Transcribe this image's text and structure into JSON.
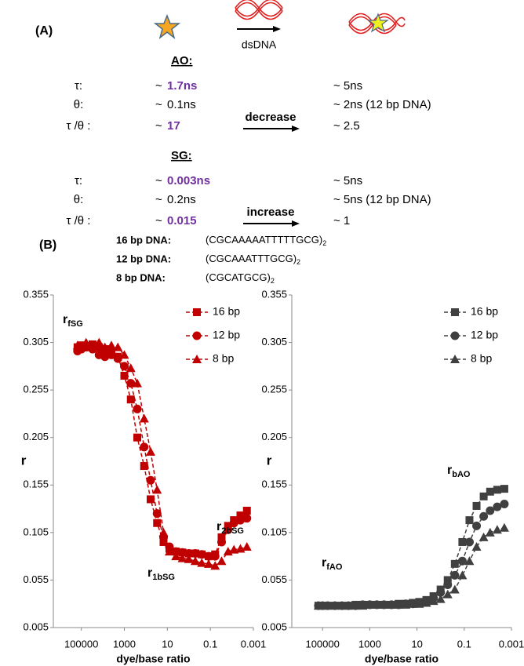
{
  "panel_a": {
    "label": "(A)",
    "arrow_label": "dsDNA",
    "highlight_color": "#7030a0",
    "sections": [
      {
        "heading": "AO:",
        "rows": [
          {
            "symbol": "τ:",
            "approx": "~",
            "free": "1.7ns",
            "highlight": true,
            "bound": "~ 5ns"
          },
          {
            "symbol": "θ:",
            "approx": "~",
            "free": "0.1ns",
            "highlight": false,
            "bound": "~ 2ns (12 bp DNA)"
          },
          {
            "symbol": "τ /θ :",
            "approx": "~",
            "free": "17",
            "highlight": true,
            "change": "decrease",
            "bound": "~ 2.5"
          }
        ]
      },
      {
        "heading": "SG:",
        "rows": [
          {
            "symbol": "τ:",
            "approx": "~",
            "free": "0.003ns",
            "highlight": true,
            "bound": "~ 5ns"
          },
          {
            "symbol": "θ:",
            "approx": "~",
            "free": "0.2ns",
            "highlight": false,
            "bound": "~ 5ns (12 bp DNA)"
          },
          {
            "symbol": "τ /θ :",
            "approx": "~",
            "free": "0.015",
            "highlight": true,
            "change": "increase",
            "bound": "~ 1"
          }
        ]
      }
    ]
  },
  "panel_b": {
    "label": "(B)",
    "sequences": [
      {
        "label": "16 bp DNA:",
        "sequence": "(CGCAAAAATTTTTGCG)",
        "subscript": "2"
      },
      {
        "label": "12 bp DNA:",
        "sequence": "(CGCAAATTTGCG)",
        "subscript": "2"
      },
      {
        "label": "8 bp DNA:",
        "sequence": "(CGCATGCG)",
        "subscript": "2"
      }
    ]
  },
  "chart_data": [
    {
      "type": "line",
      "xscale": "log",
      "xlabel": "dye/base ratio",
      "ylabel": "r",
      "line_style": "dashed",
      "legend": "upper right",
      "x": [
        150000,
        100000,
        60000,
        30000,
        15000,
        8000,
        4000,
        2000,
        1000,
        500,
        250,
        120,
        60,
        30,
        15,
        8,
        4,
        2,
        1,
        0.5,
        0.25,
        0.12,
        0.06,
        0.03,
        0.015,
        0.008,
        0.004,
        0.002
      ],
      "xlim": [
        2000000,
        0.001
      ],
      "xticks": [
        100000,
        1000,
        10,
        0.1,
        0.001
      ],
      "ylim": [
        0.005,
        0.355
      ],
      "yticks": [
        0.005,
        0.055,
        0.105,
        0.155,
        0.205,
        0.255,
        0.305,
        0.355
      ],
      "series": [
        {
          "name": "16 bp",
          "color": "#c00000",
          "marker": "square",
          "values": [
            0.3,
            0.302,
            0.3,
            0.303,
            0.3,
            0.298,
            0.296,
            0.29,
            0.27,
            0.245,
            0.205,
            0.175,
            0.14,
            0.115,
            0.095,
            0.088,
            0.085,
            0.084,
            0.083,
            0.083,
            0.082,
            0.08,
            0.082,
            0.1,
            0.112,
            0.118,
            0.123,
            0.128
          ]
        },
        {
          "name": "12 bp",
          "color": "#c00000",
          "marker": "circle",
          "values": [
            0.296,
            0.298,
            0.3,
            0.298,
            0.292,
            0.29,
            0.292,
            0.288,
            0.28,
            0.262,
            0.235,
            0.195,
            0.16,
            0.125,
            0.1,
            0.09,
            0.085,
            0.084,
            0.083,
            0.083,
            0.082,
            0.08,
            0.08,
            0.095,
            0.108,
            0.115,
            0.118,
            0.12
          ]
        },
        {
          "name": "8 bp",
          "color": "#c00000",
          "marker": "triangle",
          "values": [
            0.302,
            0.3,
            0.305,
            0.302,
            0.305,
            0.3,
            0.302,
            0.3,
            0.292,
            0.278,
            0.262,
            0.225,
            0.19,
            0.15,
            0.105,
            0.085,
            0.08,
            0.078,
            0.077,
            0.075,
            0.073,
            0.072,
            0.07,
            0.075,
            0.085,
            0.087,
            0.088,
            0.09
          ]
        }
      ],
      "annotations": [
        {
          "text": "r",
          "subscript": "fSG"
        },
        {
          "text": "r",
          "subscript": "2bSG"
        },
        {
          "text": "r",
          "subscript": "1bSG"
        }
      ]
    },
    {
      "type": "line",
      "xscale": "log",
      "xlabel": "dye/base ratio",
      "ylabel": "r",
      "line_style": "dashed",
      "legend": "upper right",
      "x": [
        150000,
        100000,
        60000,
        30000,
        15000,
        8000,
        4000,
        2000,
        1000,
        500,
        250,
        120,
        60,
        30,
        15,
        8,
        4,
        2,
        1,
        0.5,
        0.25,
        0.12,
        0.06,
        0.03,
        0.015,
        0.008,
        0.004,
        0.002
      ],
      "xlim": [
        2000000,
        0.001
      ],
      "xticks": [
        100000,
        1000,
        10,
        0.1,
        0.001
      ],
      "ylim": [
        0.005,
        0.355
      ],
      "yticks": [
        0.005,
        0.055,
        0.105,
        0.155,
        0.205,
        0.255,
        0.305,
        0.355
      ],
      "series": [
        {
          "name": "16 bp",
          "color": "#404040",
          "marker": "square",
          "values": [
            0.028,
            0.028,
            0.028,
            0.028,
            0.028,
            0.028,
            0.029,
            0.029,
            0.029,
            0.029,
            0.029,
            0.029,
            0.03,
            0.03,
            0.031,
            0.032,
            0.034,
            0.038,
            0.045,
            0.055,
            0.072,
            0.095,
            0.118,
            0.133,
            0.143,
            0.148,
            0.15,
            0.151
          ]
        },
        {
          "name": "12 bp",
          "color": "#404040",
          "marker": "circle",
          "values": [
            0.028,
            0.028,
            0.028,
            0.028,
            0.028,
            0.028,
            0.028,
            0.029,
            0.029,
            0.029,
            0.029,
            0.029,
            0.029,
            0.03,
            0.03,
            0.031,
            0.032,
            0.036,
            0.042,
            0.05,
            0.06,
            0.075,
            0.095,
            0.112,
            0.122,
            0.128,
            0.132,
            0.135
          ]
        },
        {
          "name": "8 bp",
          "color": "#404040",
          "marker": "triangle",
          "values": [
            0.028,
            0.028,
            0.028,
            0.028,
            0.028,
            0.028,
            0.028,
            0.028,
            0.029,
            0.029,
            0.029,
            0.029,
            0.029,
            0.029,
            0.03,
            0.03,
            0.031,
            0.033,
            0.035,
            0.04,
            0.045,
            0.06,
            0.075,
            0.09,
            0.1,
            0.105,
            0.108,
            0.11
          ]
        }
      ],
      "annotations": [
        {
          "text": "r",
          "subscript": "bAO"
        },
        {
          "text": "r",
          "subscript": "fAO"
        }
      ]
    }
  ]
}
